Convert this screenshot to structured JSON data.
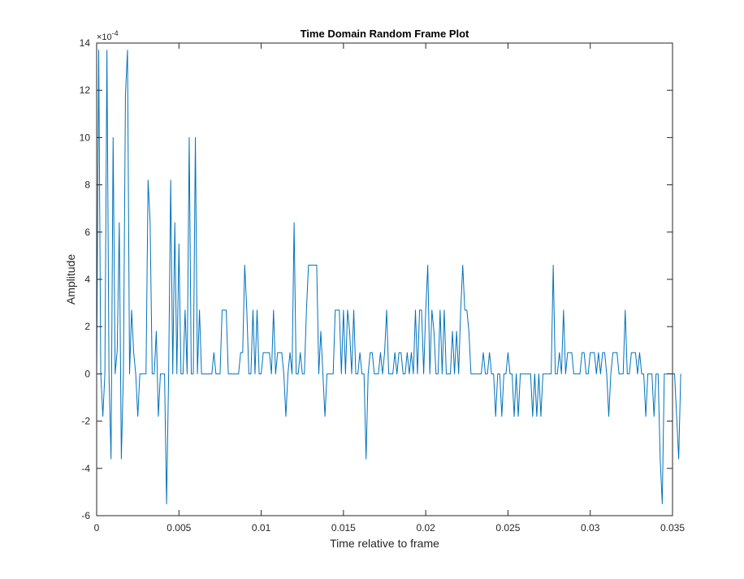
{
  "chart_data": {
    "type": "line",
    "title": "Time Domain Random Frame Plot",
    "xlabel": "Time relative to frame",
    "ylabel": "Amplitude",
    "y_exponent_label": "×10^{-4}",
    "y_multiplier_text": "×10",
    "y_exponent_text": "-4",
    "xlim": [
      0,
      0.035
    ],
    "ylim": [
      -6,
      14
    ],
    "y_scale_factor": 0.0001,
    "xticks": [
      0,
      0.005,
      0.01,
      0.015,
      0.02,
      0.025,
      0.03,
      0.035
    ],
    "xtick_labels": [
      "0",
      "0.005",
      "0.01",
      "0.015",
      "0.02",
      "0.025",
      "0.03",
      "0.035"
    ],
    "yticks": [
      -6,
      -4,
      -2,
      0,
      2,
      4,
      6,
      8,
      10,
      12,
      14
    ],
    "ytick_labels": [
      "-6",
      "-4",
      "-2",
      "0",
      "2",
      "4",
      "6",
      "8",
      "10",
      "12",
      "14"
    ],
    "grid": false,
    "legend": "none",
    "series": [
      {
        "color": "#0072BD",
        "dt": 0.000125,
        "values_x1e4": [
          0,
          13.7,
          0,
          -1.8,
          0,
          13.7,
          0,
          -3.6,
          10.0,
          0,
          1.0,
          6.4,
          -3.6,
          0,
          11.8,
          13.7,
          0,
          2.7,
          0.9,
          0,
          -1.8,
          0,
          0,
          0,
          0,
          8.2,
          6.4,
          0,
          0,
          1.8,
          -1.8,
          0,
          0,
          0,
          -5.5,
          0,
          8.2,
          0,
          6.4,
          0,
          5.5,
          0,
          0,
          2.7,
          0,
          10.0,
          0,
          0,
          10.0,
          0,
          2.7,
          0,
          0,
          0,
          0,
          0,
          0,
          0.9,
          0,
          0,
          0,
          2.7,
          2.7,
          2.7,
          0,
          0,
          0,
          0,
          0,
          0,
          0.9,
          0.9,
          4.6,
          2.7,
          0,
          0,
          2.7,
          0,
          2.7,
          0,
          0,
          0.9,
          0.9,
          0.9,
          0.9,
          0,
          2.7,
          0,
          0.9,
          0.9,
          0.9,
          0,
          -1.8,
          0,
          0.9,
          0,
          6.4,
          0,
          0,
          0.9,
          0,
          0,
          2.7,
          4.6,
          4.6,
          4.6,
          4.6,
          4.6,
          0,
          1.8,
          0,
          -1.8,
          0,
          0,
          0,
          0,
          2.7,
          2.7,
          2.7,
          0,
          2.7,
          0,
          2.7,
          1.8,
          0,
          2.7,
          0,
          0,
          0.9,
          0,
          0,
          -3.6,
          0,
          0.9,
          0.9,
          0,
          0,
          0,
          0.9,
          0,
          0.9,
          2.7,
          0,
          0,
          0,
          0.9,
          0,
          0.9,
          0.9,
          0,
          0,
          0.9,
          0,
          0.9,
          0,
          2.7,
          0,
          2.7,
          2.7,
          0,
          2.7,
          4.6,
          0,
          2.7,
          1.8,
          0,
          0,
          2.7,
          0,
          2.7,
          0,
          0,
          0,
          1.8,
          0,
          1.8,
          0,
          2.7,
          4.6,
          2.7,
          2.7,
          1.8,
          0,
          0,
          0,
          0,
          0,
          0,
          0.9,
          0,
          0,
          0.9,
          0,
          0,
          -1.8,
          0,
          0,
          -1.8,
          0,
          0,
          0.9,
          0,
          0,
          -1.8,
          0,
          -1.8,
          0,
          0,
          0,
          0,
          0,
          0,
          -1.8,
          0,
          -1.8,
          0,
          -1.8,
          0,
          0,
          0,
          0,
          0,
          4.6,
          0,
          0,
          0.9,
          0,
          2.7,
          0,
          0.9,
          0.9,
          0.9,
          0,
          0,
          0,
          0,
          0.9,
          0.9,
          0,
          0,
          0.9,
          0.9,
          0.9,
          0,
          0.9,
          0,
          0.9,
          0.9,
          0,
          -1.8,
          0,
          0.9,
          0.9,
          0.9,
          0,
          0,
          0,
          2.7,
          0,
          0,
          0.9,
          0.9,
          0.9,
          0,
          0.9,
          0,
          0,
          -1.8,
          0,
          0,
          0,
          -1.8,
          0,
          0,
          -3.6,
          -5.5,
          0,
          0,
          0,
          0,
          0,
          0,
          -1.8,
          -3.6,
          0
        ]
      }
    ]
  }
}
